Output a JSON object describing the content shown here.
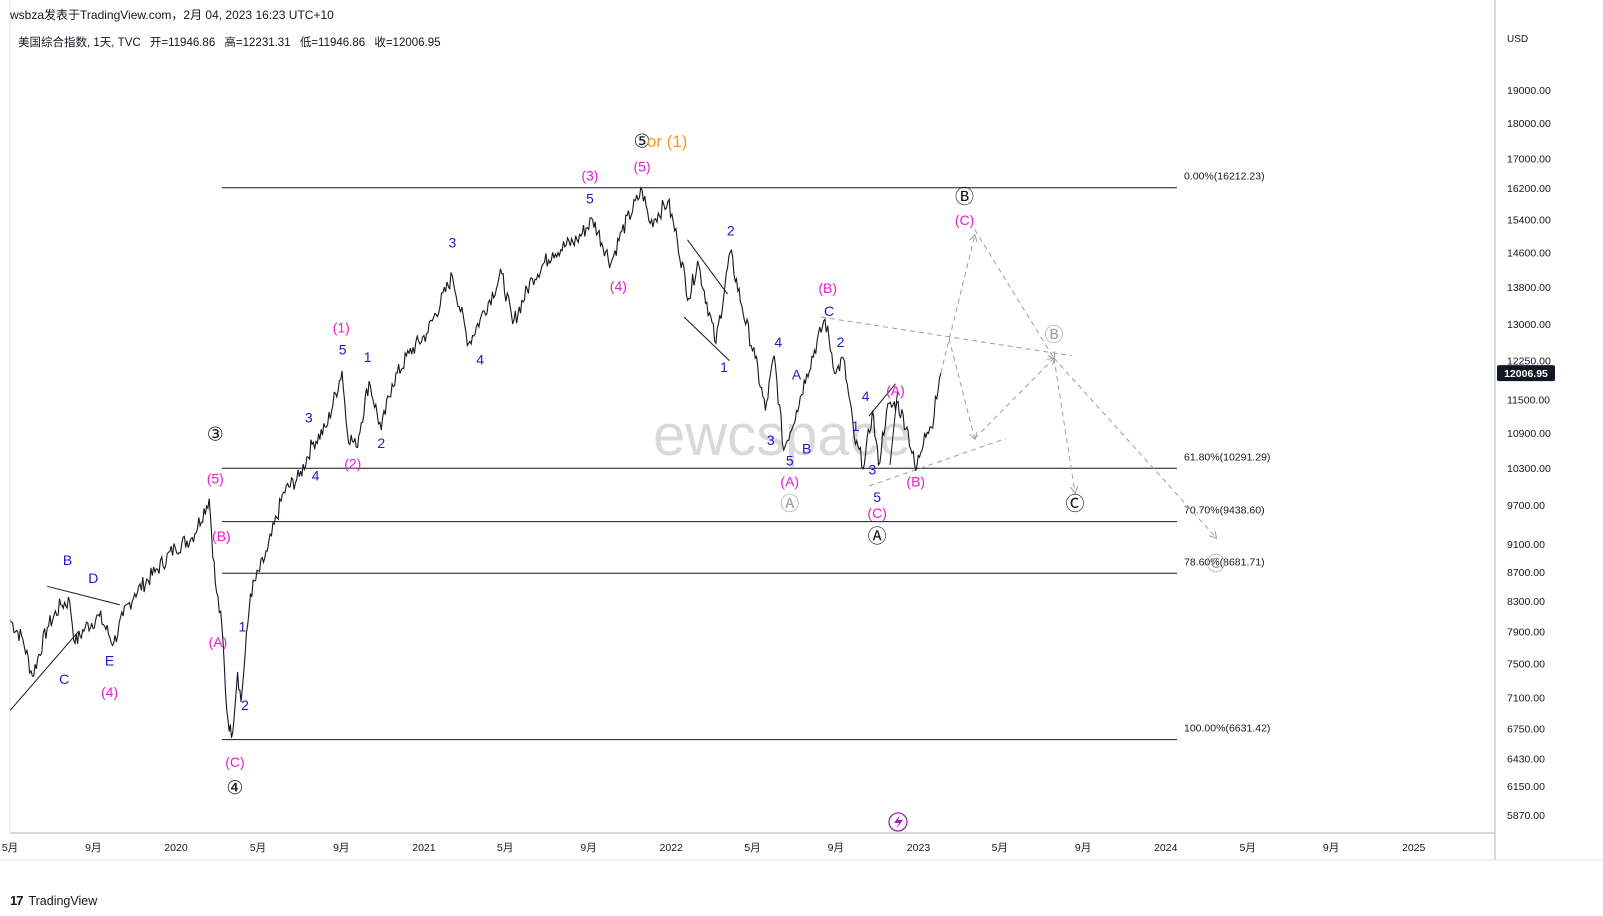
{
  "header": {
    "author_line": "wsbza发表于TradingView.com，2月 04, 2023 16:23 UTC+10"
  },
  "legend": {
    "symbol": "美国综合指数, 1天, TVC",
    "open": "开=11946.86",
    "high": "高=12231.31",
    "low": "低=11946.86",
    "close": "收=12006.95"
  },
  "watermark": "ewcspace",
  "footer": {
    "brand": "TradingView",
    "brand_mark": "17"
  },
  "colors": {
    "candles": "#131722",
    "blue_labels": "#1a1acc",
    "magenta_labels": "#e91ad0",
    "orange_labels": "#f59a23",
    "projection": "#9e9e9e",
    "fib_lines": "#131722",
    "price_badge_bg": "#131722"
  },
  "chart_data": {
    "type": "line",
    "title": "美国综合指数, 1天, TVC",
    "currency": "USD",
    "y_scale": "log",
    "ylim": [
      5700,
      21000
    ],
    "y_ticks": [
      5870,
      6150,
      6430,
      6750,
      7100,
      7500,
      7900,
      8300,
      8700,
      9100,
      9700,
      10300,
      10900,
      11500,
      12250,
      13000,
      13800,
      14600,
      15400,
      16200,
      17000,
      18000,
      19000
    ],
    "y_tick_labels": [
      "5870.00",
      "6150.00",
      "6430.00",
      "6750.00",
      "7100.00",
      "7500.00",
      "7900.00",
      "8300.00",
      "8700.00",
      "9100.00",
      "9700.00",
      "10300.00",
      "10900.00",
      "11500.00",
      "12250.00",
      "13000.00",
      "13800.00",
      "14600.00",
      "15400.00",
      "16200.00",
      "17000.00",
      "18000.00",
      "19000.00"
    ],
    "x_range": [
      "2019-05-01",
      "2025-05-01"
    ],
    "x_ticks": [
      {
        "date": "2019-05-01",
        "label": "5月"
      },
      {
        "date": "2019-09-01",
        "label": "9月"
      },
      {
        "date": "2020-01-01",
        "label": "2020"
      },
      {
        "date": "2020-05-01",
        "label": "5月"
      },
      {
        "date": "2020-09-01",
        "label": "9月"
      },
      {
        "date": "2021-01-01",
        "label": "2021"
      },
      {
        "date": "2021-05-01",
        "label": "5月"
      },
      {
        "date": "2021-09-01",
        "label": "9月"
      },
      {
        "date": "2022-01-01",
        "label": "2022"
      },
      {
        "date": "2022-05-01",
        "label": "5月"
      },
      {
        "date": "2022-09-01",
        "label": "9月"
      },
      {
        "date": "2023-01-01",
        "label": "2023"
      },
      {
        "date": "2023-05-01",
        "label": "5月"
      },
      {
        "date": "2023-09-01",
        "label": "9月"
      },
      {
        "date": "2024-01-01",
        "label": "2024"
      },
      {
        "date": "2024-05-01",
        "label": "5月"
      },
      {
        "date": "2024-09-01",
        "label": "9月"
      },
      {
        "date": "2025-01-01",
        "label": "2025"
      }
    ],
    "last_price": 12006.95,
    "last_price_label": "12006.95",
    "series": [
      {
        "points": [
          [
            "2019-05-01",
            8050
          ],
          [
            "2019-05-20",
            7800
          ],
          [
            "2019-06-03",
            7350
          ],
          [
            "2019-06-25",
            7950
          ],
          [
            "2019-07-15",
            8250
          ],
          [
            "2019-07-28",
            8300
          ],
          [
            "2019-08-05",
            7750
          ],
          [
            "2019-08-20",
            7950
          ],
          [
            "2019-09-10",
            8100
          ],
          [
            "2019-10-01",
            7750
          ],
          [
            "2019-10-15",
            8100
          ],
          [
            "2019-11-01",
            8400
          ],
          [
            "2019-12-01",
            8700
          ],
          [
            "2019-12-31",
            9050
          ],
          [
            "2020-01-25",
            9200
          ],
          [
            "2020-02-19",
            9800
          ],
          [
            "2020-02-28",
            8550
          ],
          [
            "2020-03-09",
            7950
          ],
          [
            "2020-03-16",
            6950
          ],
          [
            "2020-03-23",
            6650
          ],
          [
            "2020-04-01",
            7400
          ],
          [
            "2020-04-06",
            7050
          ],
          [
            "2020-04-20",
            8400
          ],
          [
            "2020-05-15",
            9000
          ],
          [
            "2020-06-08",
            9900
          ],
          [
            "2020-07-01",
            10150
          ],
          [
            "2020-07-20",
            10700
          ],
          [
            "2020-08-10",
            11000
          ],
          [
            "2020-09-02",
            12050
          ],
          [
            "2020-09-10",
            10900
          ],
          [
            "2020-09-23",
            10650
          ],
          [
            "2020-10-12",
            11850
          ],
          [
            "2020-10-30",
            10950
          ],
          [
            "2020-11-15",
            11800
          ],
          [
            "2020-12-10",
            12400
          ],
          [
            "2021-01-05",
            12800
          ],
          [
            "2021-02-12",
            14050
          ],
          [
            "2021-03-08",
            12600
          ],
          [
            "2021-03-25",
            13100
          ],
          [
            "2021-04-26",
            14100
          ],
          [
            "2021-05-12",
            13000
          ],
          [
            "2021-06-10",
            14000
          ],
          [
            "2021-07-10",
            14600
          ],
          [
            "2021-08-15",
            14900
          ],
          [
            "2021-09-07",
            15400
          ],
          [
            "2021-10-04",
            14350
          ],
          [
            "2021-10-20",
            15100
          ],
          [
            "2021-11-19",
            16150
          ],
          [
            "2021-12-01",
            15300
          ],
          [
            "2021-12-27",
            15850
          ],
          [
            "2022-01-10",
            14900
          ],
          [
            "2022-01-27",
            13550
          ],
          [
            "2022-02-09",
            14400
          ],
          [
            "2022-03-08",
            12600
          ],
          [
            "2022-03-29",
            14600
          ],
          [
            "2022-04-15",
            13400
          ],
          [
            "2022-05-05",
            12300
          ],
          [
            "2022-05-20",
            11300
          ],
          [
            "2022-06-02",
            12350
          ],
          [
            "2022-06-16",
            10600
          ],
          [
            "2022-07-05",
            11300
          ],
          [
            "2022-07-20",
            12000
          ],
          [
            "2022-08-16",
            13100
          ],
          [
            "2022-09-01",
            12000
          ],
          [
            "2022-09-12",
            12300
          ],
          [
            "2022-09-30",
            10700
          ],
          [
            "2022-10-13",
            10350
          ],
          [
            "2022-10-25",
            11300
          ],
          [
            "2022-11-03",
            10350
          ],
          [
            "2022-11-15",
            11300
          ],
          [
            "2022-11-30",
            11450
          ],
          [
            "2022-12-15",
            11000
          ],
          [
            "2022-12-28",
            10250
          ],
          [
            "2023-01-10",
            10900
          ],
          [
            "2023-01-20",
            11000
          ],
          [
            "2023-02-03",
            12006
          ]
        ]
      }
    ],
    "fib_levels": [
      {
        "price": 16212.23,
        "label": "0.00%(16212.23)"
      },
      {
        "price": 10291.29,
        "label": "61.80%(10291.29)"
      },
      {
        "price": 9438.6,
        "label": "70.70%(9438.60)"
      },
      {
        "price": 8681.71,
        "label": "78.60%(8681.71)"
      },
      {
        "price": 6631.42,
        "label": "100.00%(6631.42)"
      }
    ],
    "annotations": [
      {
        "text": "B",
        "date": "2019-07-25",
        "price": 8850,
        "color": "blue"
      },
      {
        "text": "D",
        "date": "2019-09-01",
        "price": 8600,
        "color": "blue"
      },
      {
        "text": "C",
        "date": "2019-07-20",
        "price": 7300,
        "color": "blue"
      },
      {
        "text": "E",
        "date": "2019-09-25",
        "price": 7520,
        "color": "blue"
      },
      {
        "text": "(4)",
        "date": "2019-09-25",
        "price": 7150,
        "color": "magenta"
      },
      {
        "text": "③",
        "date": "2020-02-28",
        "price": 10850,
        "color": "black"
      },
      {
        "text": "(5)",
        "date": "2020-02-28",
        "price": 10100,
        "color": "magenta"
      },
      {
        "text": "(B)",
        "date": "2020-03-08",
        "price": 9200,
        "color": "magenta"
      },
      {
        "text": "(A)",
        "date": "2020-03-03",
        "price": 7750,
        "color": "magenta"
      },
      {
        "text": "1",
        "date": "2020-04-08",
        "price": 7950,
        "color": "blue"
      },
      {
        "text": "2",
        "date": "2020-04-12",
        "price": 7000,
        "color": "blue"
      },
      {
        "text": "(C)",
        "date": "2020-03-28",
        "price": 6380,
        "color": "magenta"
      },
      {
        "text": "④",
        "date": "2020-03-28",
        "price": 6120,
        "color": "black"
      },
      {
        "text": "3",
        "date": "2020-07-15",
        "price": 11150,
        "color": "blue"
      },
      {
        "text": "4",
        "date": "2020-07-25",
        "price": 10150,
        "color": "blue"
      },
      {
        "text": "(1)",
        "date": "2020-09-01",
        "price": 12900,
        "color": "magenta"
      },
      {
        "text": "5",
        "date": "2020-09-03",
        "price": 12450,
        "color": "blue"
      },
      {
        "text": "1",
        "date": "2020-10-10",
        "price": 12300,
        "color": "blue"
      },
      {
        "text": "(2)",
        "date": "2020-09-18",
        "price": 10350,
        "color": "magenta"
      },
      {
        "text": "2",
        "date": "2020-10-30",
        "price": 10700,
        "color": "blue"
      },
      {
        "text": "3",
        "date": "2021-02-12",
        "price": 14800,
        "color": "blue"
      },
      {
        "text": "4",
        "date": "2021-03-25",
        "price": 12250,
        "color": "blue"
      },
      {
        "text": "(3)",
        "date": "2021-09-03",
        "price": 16500,
        "color": "magenta"
      },
      {
        "text": "5",
        "date": "2021-09-03",
        "price": 15900,
        "color": "blue"
      },
      {
        "text": "(4)",
        "date": "2021-10-15",
        "price": 13800,
        "color": "magenta"
      },
      {
        "text": "⑤",
        "date": "2021-11-19",
        "price": 17450,
        "color": "black"
      },
      {
        "text": "or (1)",
        "date": "2021-12-26",
        "price": 17450,
        "color": "orange"
      },
      {
        "text": "(5)",
        "date": "2021-11-19",
        "price": 16750,
        "color": "magenta"
      },
      {
        "text": "2",
        "date": "2022-03-30",
        "price": 15100,
        "color": "blue"
      },
      {
        "text": "1",
        "date": "2022-03-20",
        "price": 12100,
        "color": "blue"
      },
      {
        "text": "(B)",
        "date": "2022-08-20",
        "price": 13750,
        "color": "magenta"
      },
      {
        "text": "C",
        "date": "2022-08-22",
        "price": 13250,
        "color": "blue"
      },
      {
        "text": "4",
        "date": "2022-06-08",
        "price": 12600,
        "color": "blue"
      },
      {
        "text": "A",
        "date": "2022-07-05",
        "price": 11950,
        "color": "blue"
      },
      {
        "text": "2",
        "date": "2022-09-08",
        "price": 12600,
        "color": "blue"
      },
      {
        "text": "4",
        "date": "2022-10-15",
        "price": 11550,
        "color": "blue"
      },
      {
        "text": "1",
        "date": "2022-09-30",
        "price": 11000,
        "color": "blue"
      },
      {
        "text": "3",
        "date": "2022-05-28",
        "price": 10750,
        "color": "blue"
      },
      {
        "text": "B",
        "date": "2022-07-20",
        "price": 10600,
        "color": "blue"
      },
      {
        "text": "5",
        "date": "2022-06-25",
        "price": 10400,
        "color": "blue"
      },
      {
        "text": "(A)",
        "date": "2022-06-25",
        "price": 10050,
        "color": "magenta"
      },
      {
        "text": "Ⓐ",
        "date": "2022-06-25",
        "price": 9700,
        "color": "gray"
      },
      {
        "text": "3",
        "date": "2022-10-25",
        "price": 10250,
        "color": "blue"
      },
      {
        "text": "5",
        "date": "2022-11-01",
        "price": 9800,
        "color": "blue"
      },
      {
        "text": "(C)",
        "date": "2022-11-01",
        "price": 9550,
        "color": "magenta"
      },
      {
        "text": "Ⓐ",
        "date": "2022-11-01",
        "price": 9200,
        "color": "black"
      },
      {
        "text": "(A)",
        "date": "2022-11-28",
        "price": 11650,
        "color": "magenta"
      },
      {
        "text": "(B)",
        "date": "2022-12-28",
        "price": 10050,
        "color": "magenta"
      },
      {
        "text": "Ⓑ",
        "date": "2023-03-10",
        "price": 15950,
        "color": "black"
      },
      {
        "text": "(C)",
        "date": "2023-03-10",
        "price": 15350,
        "color": "magenta"
      },
      {
        "text": "Ⓑ",
        "date": "2023-07-20",
        "price": 12750,
        "color": "gray"
      },
      {
        "text": "Ⓒ",
        "date": "2023-08-20",
        "price": 9700,
        "color": "black"
      },
      {
        "text": "Ⓒ",
        "date": "2024-03-15",
        "price": 8800,
        "color": "gray"
      }
    ],
    "drawings": [
      {
        "kind": "line",
        "color": "black",
        "from": [
          "2019-05-01",
          6950
        ],
        "to": [
          "2019-08-10",
          7900
        ]
      },
      {
        "kind": "line",
        "color": "black",
        "from": [
          "2019-06-25",
          8500
        ],
        "to": [
          "2019-10-10",
          8250
        ]
      },
      {
        "kind": "line",
        "color": "black",
        "from": [
          "2022-01-25",
          14900
        ],
        "to": [
          "2022-03-25",
          13650
        ]
      },
      {
        "kind": "line",
        "color": "black",
        "from": [
          "2022-01-20",
          13150
        ],
        "to": [
          "2022-03-28",
          12250
        ]
      },
      {
        "kind": "line",
        "color": "black",
        "from": [
          "2022-10-20",
          11200
        ],
        "to": [
          "2022-11-28",
          11800
        ]
      },
      {
        "kind": "line",
        "color": "black",
        "from": [
          "2022-11-20",
          10350
        ],
        "to": [
          "2022-12-01",
          11650
        ]
      },
      {
        "kind": "dashed",
        "color": "gray",
        "from": [
          "2022-08-10",
          13150
        ],
        "to": [
          "2023-08-15",
          12350
        ]
      },
      {
        "kind": "dashed",
        "color": "gray",
        "from": [
          "2022-10-20",
          10000
        ],
        "to": [
          "2023-05-10",
          10800
        ]
      },
      {
        "kind": "arrow",
        "color": "gray",
        "from": [
          "2023-02-03",
          12006
        ],
        "to": [
          "2023-03-25",
          15000
        ]
      },
      {
        "kind": "arrow",
        "color": "gray",
        "from": [
          "2023-03-25",
          15150
        ],
        "to": [
          "2023-07-20",
          12300
        ]
      },
      {
        "kind": "arrow",
        "color": "gray",
        "from": [
          "2023-07-20",
          12300
        ],
        "to": [
          "2023-08-20",
          9900
        ]
      },
      {
        "kind": "arrow",
        "color": "gray",
        "from": [
          "2023-02-15",
          12700
        ],
        "to": [
          "2023-03-25",
          10800
        ]
      },
      {
        "kind": "arrow",
        "color": "gray",
        "from": [
          "2023-03-25",
          10800
        ],
        "to": [
          "2023-07-20",
          12300
        ]
      },
      {
        "kind": "arrow",
        "color": "gray",
        "from": [
          "2023-07-20",
          12300
        ],
        "to": [
          "2024-03-15",
          9200
        ]
      }
    ]
  }
}
